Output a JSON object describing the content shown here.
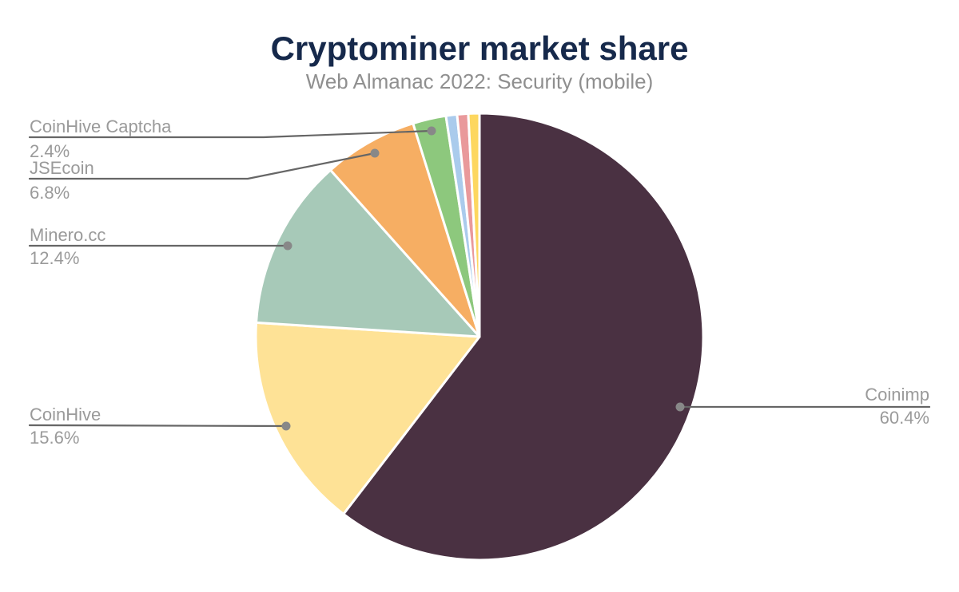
{
  "figure": {
    "title": "Cryptominer market share",
    "subtitle": "Web Almanac 2022: Security (mobile)"
  },
  "colors": {
    "title": "#16294b",
    "subtitle": "#8f8f8f",
    "label": "#9a9a9a",
    "leader": "#666666",
    "dot": "#888888",
    "slice_border": "#ffffff",
    "background": "#ffffff"
  },
  "chart_data": {
    "type": "pie",
    "title": "Cryptominer market share",
    "subtitle": "Web Almanac 2022: Security (mobile)",
    "start_angle_deg": 0,
    "direction": "clockwise",
    "legend_position": "none",
    "label_style": "external-callout-lines",
    "slices": [
      {
        "label": "Coinimp",
        "value": 60.4,
        "display": "60.4%",
        "color": "#4a3142",
        "labeled": true
      },
      {
        "label": "CoinHive",
        "value": 15.6,
        "display": "15.6%",
        "color": "#fee296",
        "labeled": true
      },
      {
        "label": "Minero.cc",
        "value": 12.4,
        "display": "12.4%",
        "color": "#a7c9b8",
        "labeled": true
      },
      {
        "label": "JSEcoin",
        "value": 6.8,
        "display": "6.8%",
        "color": "#f6ae63",
        "labeled": true
      },
      {
        "label": "CoinHive Captcha",
        "value": 2.4,
        "display": "2.4%",
        "color": "#8dc87d",
        "labeled": true
      },
      {
        "label": "",
        "value": 0.8,
        "display": "",
        "color": "#aacbec",
        "labeled": false
      },
      {
        "label": "",
        "value": 0.8,
        "display": "",
        "color": "#e9999b",
        "labeled": false
      },
      {
        "label": "",
        "value": 0.8,
        "display": "",
        "color": "#fdd75f",
        "labeled": false
      }
    ]
  }
}
